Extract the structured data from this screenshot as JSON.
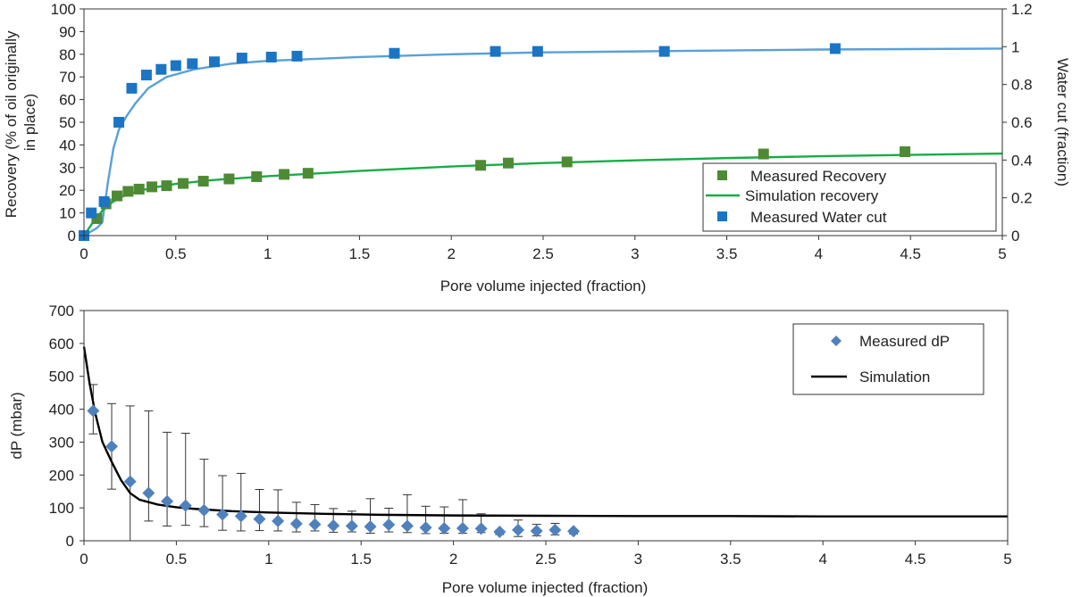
{
  "chart_data": [
    {
      "type": "scatter",
      "title": "",
      "xlabel": "Pore volume injected (fraction)",
      "ylabel": "Recovery (% of oil originally in place)",
      "ylabel_lines": [
        "Recovery (% of oil originally",
        "in place)"
      ],
      "y2label": "Water cut (fraction)",
      "xlim": [
        0,
        5
      ],
      "ylim": [
        0,
        100
      ],
      "y2lim": [
        0,
        1.2
      ],
      "xticks": [
        "0",
        "0.5",
        "1",
        "1.5",
        "2",
        "2.5",
        "3",
        "3.5",
        "4",
        "4.5",
        "5"
      ],
      "yticks": [
        "0",
        "10",
        "20",
        "30",
        "40",
        "50",
        "60",
        "70",
        "80",
        "90",
        "100"
      ],
      "y2ticks": [
        "0",
        "0.2",
        "0.4",
        "0.6",
        "0.8",
        "1",
        "1.2"
      ],
      "grid": false,
      "legend": "bottom-right",
      "series": [
        {
          "name": "Measured Recovery",
          "kind": "marker-square",
          "axis": "left",
          "color": "#4e8a34",
          "x": [
            0.0,
            0.07,
            0.12,
            0.18,
            0.24,
            0.3,
            0.37,
            0.45,
            0.54,
            0.65,
            0.79,
            0.94,
            1.09,
            1.22,
            2.16,
            2.31,
            2.63,
            3.7,
            4.47
          ],
          "y": [
            0.0,
            7.5,
            14.0,
            17.5,
            19.5,
            20.5,
            21.5,
            22.0,
            23.0,
            24.0,
            25.0,
            26.0,
            27.0,
            27.5,
            31.0,
            32.0,
            32.5,
            36.0,
            37.0
          ]
        },
        {
          "name": "Simulation recovery",
          "kind": "line",
          "axis": "left",
          "color": "#17ad45",
          "x": [
            0.0,
            0.05,
            0.1,
            0.15,
            0.2,
            0.3,
            0.4,
            0.5,
            0.7,
            1.0,
            1.5,
            2.0,
            2.5,
            3.0,
            3.5,
            4.0,
            4.5,
            5.0
          ],
          "y": [
            0.0,
            6.0,
            11.0,
            14.5,
            17.0,
            19.8,
            21.5,
            22.8,
            24.5,
            26.2,
            28.5,
            30.5,
            32.0,
            33.2,
            34.2,
            35.0,
            35.6,
            36.2
          ]
        },
        {
          "name": "Measured Water cut",
          "kind": "marker-square",
          "axis": "right",
          "color": "#1b75c4",
          "x": [
            0.0,
            0.04,
            0.11,
            0.19,
            0.26,
            0.34,
            0.42,
            0.5,
            0.59,
            0.71,
            0.86,
            1.02,
            1.16,
            1.69,
            2.24,
            2.47,
            3.16,
            4.09
          ],
          "y": [
            0.0,
            0.12,
            0.18,
            0.6,
            0.78,
            0.85,
            0.88,
            0.9,
            0.91,
            0.92,
            0.94,
            0.945,
            0.95,
            0.965,
            0.975,
            0.975,
            0.975,
            0.99
          ]
        },
        {
          "name": "Simulation water cut",
          "kind": "line",
          "axis": "right",
          "legend": false,
          "color": "#5aa0d8",
          "x": [
            0.0,
            0.07,
            0.1,
            0.13,
            0.16,
            0.19,
            0.23,
            0.28,
            0.35,
            0.45,
            0.6,
            0.8,
            1.0,
            1.5,
            2.0,
            2.5,
            3.0,
            4.0,
            5.0
          ],
          "y": [
            0.0,
            0.04,
            0.07,
            0.28,
            0.46,
            0.56,
            0.63,
            0.7,
            0.78,
            0.84,
            0.88,
            0.91,
            0.925,
            0.945,
            0.96,
            0.97,
            0.975,
            0.985,
            0.99
          ]
        }
      ]
    },
    {
      "type": "scatter",
      "title": "",
      "xlabel": "Pore volume injected (fraction)",
      "ylabel": "dP (mbar)",
      "xlim": [
        0,
        5
      ],
      "ylim": [
        0,
        700
      ],
      "xticks": [
        "0",
        "0.5",
        "1",
        "1.5",
        "2",
        "2.5",
        "3",
        "3.5",
        "4",
        "4.5",
        "5"
      ],
      "yticks": [
        "0",
        "100",
        "200",
        "300",
        "400",
        "500",
        "600",
        "700"
      ],
      "grid": false,
      "legend": "top-right",
      "series": [
        {
          "name": "Measured dP",
          "kind": "marker-diamond",
          "color": "#4f81bd",
          "x": [
            0.05,
            0.15,
            0.25,
            0.35,
            0.45,
            0.55,
            0.65,
            0.75,
            0.85,
            0.95,
            1.05,
            1.15,
            1.25,
            1.35,
            1.45,
            1.55,
            1.65,
            1.75,
            1.85,
            1.95,
            2.05,
            2.15,
            2.25,
            2.35,
            2.45,
            2.55,
            2.65
          ],
          "y": [
            395,
            287,
            180,
            145,
            120,
            107,
            93,
            80,
            75,
            66,
            60,
            52,
            50,
            46,
            45,
            43,
            49,
            45,
            40,
            38,
            38,
            37,
            27,
            33,
            30,
            33,
            29
          ],
          "error_low": [
            70,
            130,
            180,
            85,
            75,
            60,
            50,
            48,
            45,
            35,
            30,
            25,
            20,
            20,
            18,
            20,
            22,
            20,
            18,
            15,
            15,
            12,
            8,
            20,
            15,
            15,
            8
          ],
          "error_high": [
            80,
            130,
            230,
            250,
            210,
            220,
            155,
            118,
            130,
            90,
            95,
            65,
            60,
            52,
            45,
            85,
            50,
            95,
            65,
            65,
            87,
            45,
            0,
            30,
            20,
            20,
            0
          ]
        },
        {
          "name": "Simulation",
          "kind": "line",
          "color": "#000000",
          "x": [
            0.0,
            0.03,
            0.06,
            0.1,
            0.15,
            0.2,
            0.25,
            0.3,
            0.4,
            0.5,
            0.6,
            0.8,
            1.0,
            1.3,
            1.6,
            2.0,
            2.5,
            3.0,
            3.5,
            4.0,
            4.5,
            5.0
          ],
          "y": [
            590,
            480,
            390,
            300,
            240,
            185,
            145,
            125,
            110,
            102,
            97,
            90,
            86,
            82,
            79,
            77,
            76,
            75,
            75,
            74,
            74,
            74
          ]
        }
      ]
    }
  ]
}
